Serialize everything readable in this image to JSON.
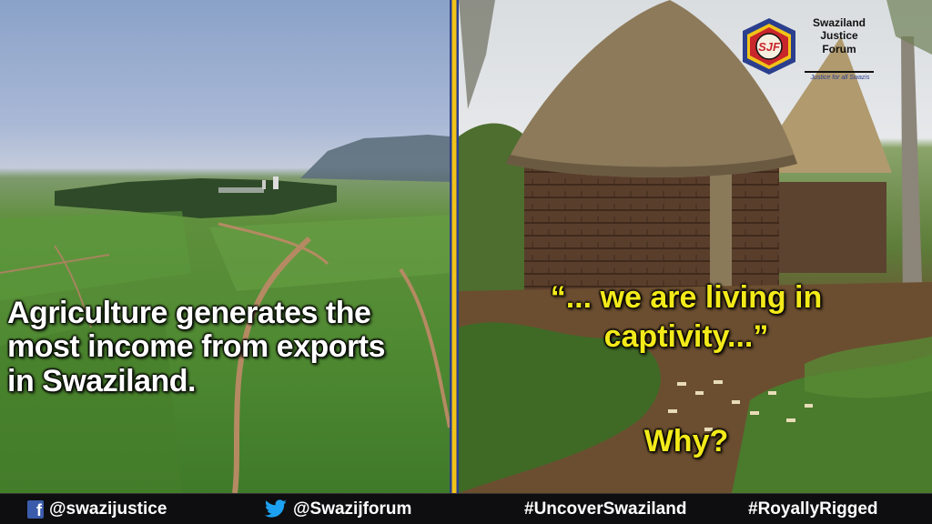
{
  "left": {
    "caption_lines": [
      "Agriculture generates the",
      "most income from exports",
      "in Swaziland."
    ]
  },
  "right": {
    "quote_lines": [
      "“... we are living in",
      "captivity...”"
    ],
    "question": "Why?"
  },
  "logo": {
    "monogram": "SJF",
    "name_lines": [
      "Swaziland",
      "Justice",
      "Forum"
    ],
    "tagline": "Justice for all Swazis"
  },
  "bottom_bar": {
    "facebook_handle": "@swazijustice",
    "twitter_handle": "@Swazijforum",
    "hashtag_1": "#UncoverSwaziland",
    "hashtag_2": "#RoyallyRigged"
  },
  "colors": {
    "quote_yellow": "#f3ea1a",
    "divider_blue": "#2b3f8e",
    "divider_gold": "#f2c318",
    "facebook_blue": "#3b5bab",
    "twitter_blue": "#1da1f2"
  }
}
